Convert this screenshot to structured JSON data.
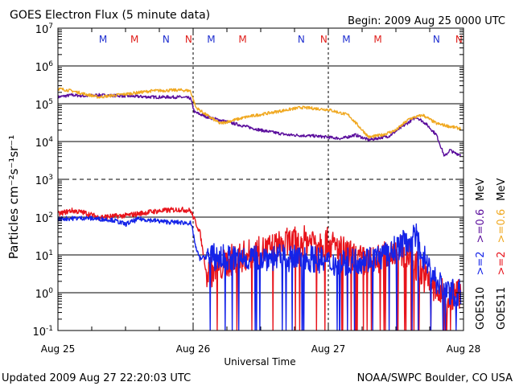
{
  "chart_data": {
    "type": "line",
    "title": "GOES Electron Flux (5 minute data)",
    "begin_label": "Begin: 2009 Aug 25 0000 UTC",
    "xlabel": "Universal Time",
    "ylabel": "Particles cm⁻²s⁻¹sr⁻¹",
    "x_unit": "days since 2009-08-25 00:00 UTC",
    "xlim": [
      0,
      3
    ],
    "y_scale": "log",
    "ylim_exp": [
      -1,
      7
    ],
    "y_tick_exps": [
      "-1",
      "0",
      "1",
      "2",
      "3",
      "4",
      "5",
      "6",
      "7"
    ],
    "y_tick_base": "10",
    "grid": "horizontal",
    "x_ticks": [
      {
        "value": 0,
        "label": "Aug 25"
      },
      {
        "value": 1,
        "label": "Aug 26"
      },
      {
        "value": 2,
        "label": "Aug 27"
      },
      {
        "value": 3,
        "label": "Aug 28"
      }
    ],
    "noon_midnight_markers": [
      {
        "value": 0.3333,
        "label": "M",
        "color": "#1f2fd0"
      },
      {
        "value": 0.5667,
        "label": "M",
        "color": "#e0201c"
      },
      {
        "value": 0.8,
        "label": "N",
        "color": "#1f2fd0"
      },
      {
        "value": 0.9667,
        "label": "N",
        "color": "#e0201c"
      },
      {
        "value": 1.1333,
        "label": "M",
        "color": "#1f2fd0"
      },
      {
        "value": 1.3667,
        "label": "M",
        "color": "#e0201c"
      },
      {
        "value": 1.8,
        "label": "N",
        "color": "#1f2fd0"
      },
      {
        "value": 1.9667,
        "label": "N",
        "color": "#e0201c"
      },
      {
        "value": 2.1333,
        "label": "M",
        "color": "#1f2fd0"
      },
      {
        "value": 2.3667,
        "label": "M",
        "color": "#e0201c"
      },
      {
        "value": 2.8,
        "label": "N",
        "color": "#1f2fd0"
      },
      {
        "value": 2.9667,
        "label": "N",
        "color": "#e0201c"
      }
    ],
    "series": [
      {
        "name": "GOES10 >=0.6 MeV",
        "color": "#5a0d9c",
        "noise": 0.04,
        "x": [
          0,
          0.1,
          0.2,
          0.3,
          0.5,
          0.7,
          0.9,
          0.98,
          1.01,
          1.1,
          1.3,
          1.5,
          1.7,
          1.9,
          2.1,
          2.2,
          2.3,
          2.45,
          2.55,
          2.65,
          2.72,
          2.8,
          2.86,
          2.9,
          2.93,
          2.98
        ],
        "y": [
          150000.0,
          170000.0,
          160000.0,
          170000.0,
          160000.0,
          150000.0,
          150000.0,
          140000.0,
          60000.0,
          45000.0,
          30000.0,
          20000.0,
          15000.0,
          14000.0,
          12000.0,
          15000.0,
          11000.0,
          14000.0,
          25000.0,
          45000.0,
          30000.0,
          15000.0,
          4000.0,
          6000.0,
          5000.0,
          4500.0
        ]
      },
      {
        "name": "GOES11 >=0.6 MeV",
        "color": "#f0a820",
        "noise": 0.04,
        "x": [
          0,
          0.1,
          0.2,
          0.3,
          0.5,
          0.7,
          0.9,
          0.98,
          1.02,
          1.1,
          1.2,
          1.4,
          1.6,
          1.8,
          2.0,
          2.15,
          2.3,
          2.4,
          2.5,
          2.6,
          2.7,
          2.8,
          2.9,
          2.98
        ],
        "y": [
          250000.0,
          220000.0,
          180000.0,
          150000.0,
          180000.0,
          220000.0,
          230000.0,
          220000.0,
          80000.0,
          50000.0,
          30000.0,
          45000.0,
          60000.0,
          80000.0,
          70000.0,
          50000.0,
          13000.0,
          15000.0,
          20000.0,
          40000.0,
          50000.0,
          30000.0,
          25000.0,
          22000.0
        ]
      },
      {
        "name": "GOES11 >=2 MeV",
        "color": "#e8141c",
        "noise": 0.07,
        "drops": 0.06,
        "x": [
          0,
          0.1,
          0.2,
          0.3,
          0.5,
          0.7,
          0.9,
          0.98,
          1.05,
          1.1,
          1.3,
          1.5,
          1.7,
          1.9,
          2.0,
          2.2,
          2.3,
          2.4,
          2.5,
          2.6,
          2.7,
          2.8,
          2.9,
          2.98
        ],
        "y": [
          120,
          150,
          130,
          100,
          110,
          140,
          160,
          150,
          40,
          3,
          8,
          12,
          20,
          25,
          20,
          8,
          6,
          8,
          15,
          10,
          3,
          1,
          0.8,
          1
        ],
        "drops_from": 1.1
      },
      {
        "name": "GOES10 >=2 MeV",
        "color": "#1423e8",
        "noise": 0.06,
        "drops": 0.05,
        "x": [
          0,
          0.2,
          0.4,
          0.5,
          0.6,
          0.8,
          0.98,
          1.0,
          1.02,
          1.05,
          1.1,
          1.3,
          1.5,
          1.7,
          1.9,
          2.0,
          2.2,
          2.4,
          2.5,
          2.6,
          2.65,
          2.7,
          2.8,
          2.9,
          2.98
        ],
        "y": [
          90,
          95,
          85,
          65,
          90,
          75,
          70,
          40,
          15,
          8,
          9,
          8,
          9,
          8,
          8,
          6,
          7,
          9,
          15,
          25,
          30,
          10,
          2,
          1,
          1
        ],
        "drops_from": 1.1
      }
    ]
  },
  "legend": {
    "unit": "MeV",
    "col1": [
      {
        "sat": "GOES10",
        "sat_color": "#000000"
      },
      {
        "label": ">=2",
        "color": "#1423e8"
      },
      {
        "label": ">=0.6",
        "color": "#5a0d9c"
      },
      {
        "unit_color": "#000000"
      }
    ],
    "col2_sat": "GOES11",
    "col2_low_label": ">=2",
    "col2_low_color": "#e8141c",
    "col2_high_label": ">=0.6",
    "col2_high_color": "#f0a820"
  },
  "footer": {
    "updated": "Updated 2009 Aug 27 22:20:03 UTC",
    "credit": "NOAA/SWPC Boulder, CO USA"
  }
}
